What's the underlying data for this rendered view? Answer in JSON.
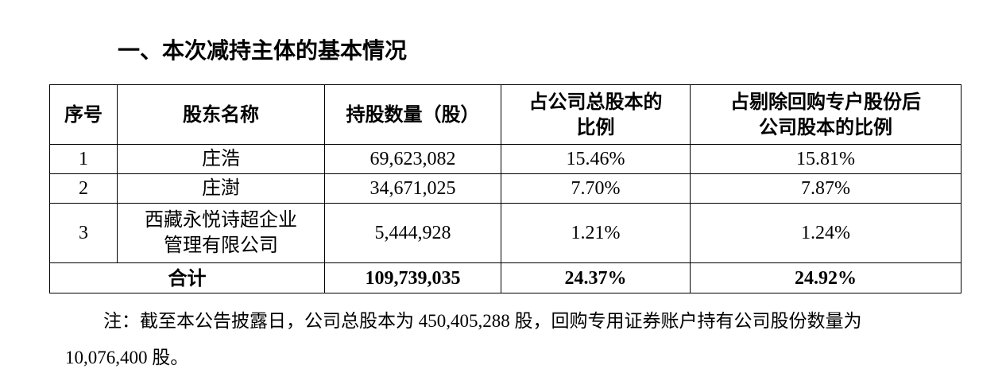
{
  "heading": "一、本次减持主体的基本情况",
  "table": {
    "header": [
      [
        "序号"
      ],
      [
        "股东名称"
      ],
      [
        "持股数量（股）"
      ],
      [
        "占公司总股本的",
        "比例"
      ],
      [
        "占剔除回购专户股份后",
        "公司股本的比例"
      ]
    ],
    "rows": [
      [
        [
          "1"
        ],
        [
          "庄浩"
        ],
        [
          "69,623,082"
        ],
        [
          "15.46%"
        ],
        [
          "15.81%"
        ]
      ],
      [
        [
          "2"
        ],
        [
          "庄澍"
        ],
        [
          "34,671,025"
        ],
        [
          "7.70%"
        ],
        [
          "7.87%"
        ]
      ],
      [
        [
          "3"
        ],
        [
          "西藏永悦诗超企业",
          "管理有限公司"
        ],
        [
          "5,444,928"
        ],
        [
          "1.21%"
        ],
        [
          "1.24%"
        ]
      ]
    ],
    "total": [
      [
        "合计"
      ],
      [
        "109,739,035"
      ],
      [
        "24.37%"
      ],
      [
        "24.92%"
      ]
    ]
  },
  "note": [
    "注：截至本公告披露日，公司总股本为 450,405,288 股，回购专用证券账户持有公司股份数量为",
    "10,076,400 股。"
  ]
}
